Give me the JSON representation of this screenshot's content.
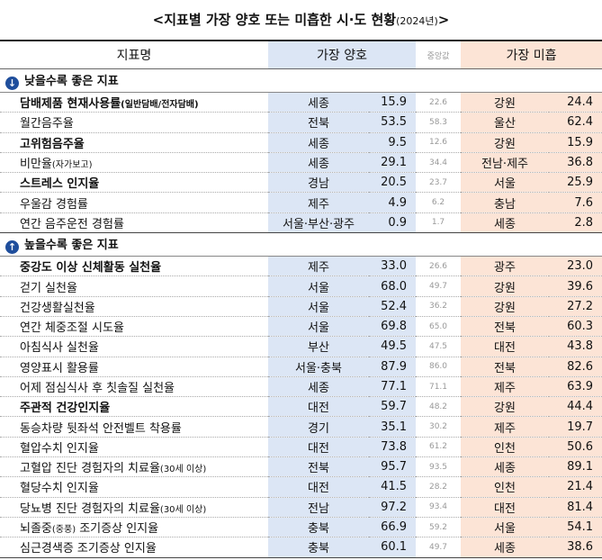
{
  "title": {
    "main": "<지표별 가장 양호 또는 미흡한 시·도 현황",
    "year": "(2024년)",
    "close": ">"
  },
  "header": {
    "name": "지표명",
    "good": "가장 양호",
    "median": "중앙값",
    "bad": "가장 미흡"
  },
  "sections": [
    {
      "label": "낮을수록 좋은 지표",
      "direction": "down",
      "rows": [
        {
          "name": "담배제품 현재사용률",
          "note": "(일반담배/전자담배)",
          "bold": true,
          "good_region": "세종",
          "good_value": "15.9",
          "median": "22.6",
          "bad_region": "강원",
          "bad_value": "24.4"
        },
        {
          "name": "월간음주율",
          "bold": false,
          "good_region": "전북",
          "good_value": "53.5",
          "median": "58.3",
          "bad_region": "울산",
          "bad_value": "62.4"
        },
        {
          "name": "고위험음주율",
          "bold": true,
          "good_region": "세종",
          "good_value": "9.5",
          "median": "12.6",
          "bad_region": "강원",
          "bad_value": "15.9"
        },
        {
          "name": "비만율",
          "note": "(자가보고)",
          "bold": false,
          "good_region": "세종",
          "good_value": "29.1",
          "median": "34.4",
          "bad_region": "전남·제주",
          "bad_value": "36.8"
        },
        {
          "name": "스트레스 인지율",
          "bold": true,
          "good_region": "경남",
          "good_value": "20.5",
          "median": "23.7",
          "bad_region": "서울",
          "bad_value": "25.9"
        },
        {
          "name": "우울감 경험률",
          "bold": false,
          "good_region": "제주",
          "good_value": "4.9",
          "median": "6.2",
          "bad_region": "충남",
          "bad_value": "7.6"
        },
        {
          "name": "연간 음주운전 경험률",
          "bold": false,
          "good_region": "서울·부산·광주",
          "good_value": "0.9",
          "median": "1.7",
          "bad_region": "세종",
          "bad_value": "2.8"
        }
      ]
    },
    {
      "label": "높을수록 좋은 지표",
      "direction": "up",
      "rows": [
        {
          "name": "중강도 이상 신체활동 실천율",
          "bold": true,
          "good_region": "제주",
          "good_value": "33.0",
          "median": "26.6",
          "bad_region": "광주",
          "bad_value": "23.0"
        },
        {
          "name": "걷기 실천율",
          "bold": false,
          "good_region": "서울",
          "good_value": "68.0",
          "median": "49.7",
          "bad_region": "강원",
          "bad_value": "39.6"
        },
        {
          "name": "건강생활실천율",
          "bold": false,
          "good_region": "서울",
          "good_value": "52.4",
          "median": "36.2",
          "bad_region": "강원",
          "bad_value": "27.2"
        },
        {
          "name": "연간 체중조절 시도율",
          "bold": false,
          "good_region": "서울",
          "good_value": "69.8",
          "median": "65.0",
          "bad_region": "전북",
          "bad_value": "60.3"
        },
        {
          "name": "아침식사 실천율",
          "bold": false,
          "good_region": "부산",
          "good_value": "49.5",
          "median": "47.5",
          "bad_region": "대전",
          "bad_value": "43.8"
        },
        {
          "name": "영양표시 활용률",
          "bold": false,
          "good_region": "서울·충북",
          "good_value": "87.9",
          "median": "86.0",
          "bad_region": "전북",
          "bad_value": "82.6"
        },
        {
          "name": "어제 점심식사 후 칫솔질 실천율",
          "bold": false,
          "good_region": "세종",
          "good_value": "77.1",
          "median": "71.1",
          "bad_region": "제주",
          "bad_value": "63.9"
        },
        {
          "name": "주관적 건강인지율",
          "bold": true,
          "good_region": "대전",
          "good_value": "59.7",
          "median": "48.2",
          "bad_region": "강원",
          "bad_value": "44.4"
        },
        {
          "name": "동승차량 뒷좌석 안전벨트 착용률",
          "bold": false,
          "good_region": "경기",
          "good_value": "35.1",
          "median": "30.2",
          "bad_region": "제주",
          "bad_value": "19.7"
        },
        {
          "name": "혈압수치 인지율",
          "bold": false,
          "good_region": "대전",
          "good_value": "73.8",
          "median": "61.2",
          "bad_region": "인천",
          "bad_value": "50.6"
        },
        {
          "name": "고혈압 진단 경험자의 치료율",
          "note": "(30세 이상)",
          "bold": false,
          "good_region": "전북",
          "good_value": "95.7",
          "median": "93.5",
          "bad_region": "세종",
          "bad_value": "89.1"
        },
        {
          "name": "혈당수치 인지율",
          "bold": false,
          "good_region": "대전",
          "good_value": "41.5",
          "median": "28.2",
          "bad_region": "인천",
          "bad_value": "21.4"
        },
        {
          "name": "당뇨병 진단 경험자의 치료율",
          "note": "(30세 이상)",
          "bold": false,
          "good_region": "전남",
          "good_value": "97.2",
          "median": "93.4",
          "bad_region": "대전",
          "bad_value": "81.4"
        },
        {
          "name": "뇌졸중",
          "note": "(중풍)",
          "name_rest": " 조기증상 인지율",
          "bold": false,
          "good_region": "충북",
          "good_value": "66.9",
          "median": "59.2",
          "bad_region": "서울",
          "bad_value": "54.1"
        },
        {
          "name": "심근경색증 조기증상 인지율",
          "bold": false,
          "good_region": "충북",
          "good_value": "60.1",
          "median": "49.7",
          "bad_region": "세종",
          "bad_value": "38.6"
        }
      ]
    }
  ]
}
